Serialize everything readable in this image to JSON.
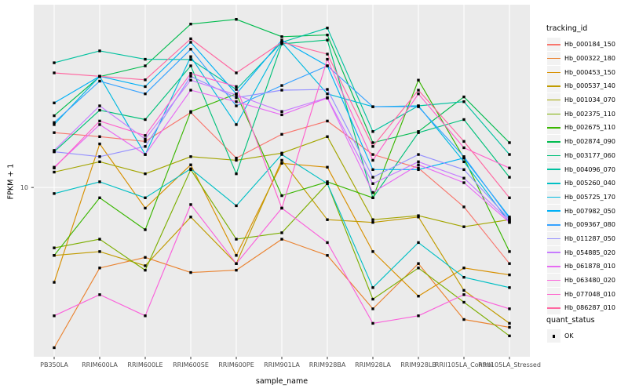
{
  "chart_data": {
    "type": "line",
    "title": "",
    "xlabel": "sample_name",
    "ylabel": "FPKM + 1",
    "y_scale": "log10",
    "y_tick_labels": [
      "10"
    ],
    "y_tick_values": [
      10
    ],
    "y_domain_log10": [
      0.25,
      1.81
    ],
    "grid": "major",
    "panel_bg": "#EBEBEB",
    "grid_color": "#FFFFFF",
    "axis_text_color": "#4D4D4D",
    "marker": "square",
    "marker_color": "#000000",
    "legend_key_bg": "#F2F2F2",
    "categories": [
      "PB350LA",
      "RRIM600LA",
      "RRIM600LE",
      "RRIM600SE",
      "RRIM600PE",
      "RRIM901LA",
      "RRIM928BA",
      "RRIM928LA",
      "RRIM928LB",
      "RRII105LA_Control",
      "RRII105LA_Stressed"
    ],
    "series": [
      {
        "name": "Hb_000184_150",
        "color": "#F8766D",
        "values": [
          17.5,
          16.8,
          16.0,
          21.5,
          13.5,
          17.2,
          19.7,
          14.0,
          12.2,
          8.2,
          4.6
        ]
      },
      {
        "name": "Hb_000322_180",
        "color": "#EA8331",
        "values": [
          1.95,
          4.4,
          4.9,
          4.2,
          4.3,
          5.9,
          5.0,
          2.9,
          4.6,
          2.6,
          2.4
        ]
      },
      {
        "name": "Hb_000453_150",
        "color": "#D89000",
        "values": [
          3.8,
          15.6,
          8.1,
          12.6,
          5.0,
          12.8,
          12.3,
          5.2,
          3.3,
          4.4,
          4.1
        ]
      },
      {
        "name": "Hb_000537_140",
        "color": "#C09B00",
        "values": [
          5.0,
          5.2,
          4.5,
          7.4,
          4.6,
          13.2,
          7.2,
          7.0,
          7.4,
          3.5,
          2.5
        ]
      },
      {
        "name": "Hb_001034_070",
        "color": "#A3A500",
        "values": [
          11.7,
          13.0,
          11.5,
          13.7,
          13.2,
          14.2,
          16.8,
          7.2,
          7.5,
          6.7,
          7.2
        ]
      },
      {
        "name": "Hb_002375_110",
        "color": "#7CAE00",
        "values": [
          5.4,
          5.9,
          4.3,
          12.0,
          5.9,
          6.3,
          10.4,
          3.2,
          4.4,
          3.1,
          2.2
        ]
      },
      {
        "name": "Hb_002675_110",
        "color": "#39B600",
        "values": [
          5.0,
          9.0,
          6.5,
          21.7,
          26.0,
          9.2,
          10.6,
          9.0,
          29.9,
          13.5,
          5.2
        ]
      },
      {
        "name": "Hb_002874_090",
        "color": "#00BB4E",
        "values": [
          20.8,
          31.0,
          34.6,
          53.0,
          55.6,
          46.6,
          47.4,
          15.8,
          17.7,
          25.2,
          15.8
        ]
      },
      {
        "name": "Hb_003177_060",
        "color": "#00C079",
        "values": [
          14.4,
          22.0,
          20.0,
          34.6,
          11.5,
          43.3,
          45.0,
          9.0,
          17.5,
          20.0,
          11.1
        ]
      },
      {
        "name": "Hb_004096_070",
        "color": "#00C19F",
        "values": [
          35.7,
          40.3,
          37.0,
          36.9,
          27.2,
          44.0,
          50.9,
          17.7,
          23.0,
          24.0,
          14.0
        ]
      },
      {
        "name": "Hb_005260_040",
        "color": "#00BFC4",
        "values": [
          9.4,
          10.6,
          9.0,
          12.1,
          8.3,
          14.0,
          10.4,
          3.6,
          5.7,
          4.0,
          3.6
        ]
      },
      {
        "name": "Hb_005725_170",
        "color": "#00BAE0",
        "values": [
          19.0,
          31.1,
          14.0,
          38.0,
          19.0,
          44.0,
          26.0,
          22.8,
          23.0,
          13.0,
          7.0
        ]
      },
      {
        "name": "Hb_007982_050",
        "color": "#00B0F6",
        "values": [
          23.7,
          31.1,
          28.0,
          44.0,
          26.0,
          45.0,
          34.6,
          12.0,
          12.0,
          13.5,
          7.4
        ]
      },
      {
        "name": "Hb_009367_080",
        "color": "#35A2FF",
        "values": [
          19.4,
          29.6,
          26.0,
          41.0,
          23.0,
          28.3,
          34.6,
          22.8,
          22.8,
          13.7,
          7.3
        ]
      },
      {
        "name": "Hb_011287_050",
        "color": "#9590FF",
        "values": [
          14.4,
          13.7,
          15.2,
          31.1,
          25.0,
          27.0,
          27.2,
          11.1,
          14.0,
          12.0,
          7.2
        ]
      },
      {
        "name": "Hb_054885_020",
        "color": "#C77CFF",
        "values": [
          14.6,
          23.0,
          16.4,
          29.9,
          25.7,
          21.7,
          25.0,
          10.4,
          13.0,
          11.0,
          7.1
        ]
      },
      {
        "name": "Hb_061878_010",
        "color": "#E76BF3",
        "values": [
          12.3,
          19.0,
          14.0,
          27.0,
          24.0,
          21.0,
          24.9,
          9.5,
          12.6,
          10.5,
          7.0
        ]
      },
      {
        "name": "Hb_063480_020",
        "color": "#FA62DB",
        "values": [
          2.7,
          3.35,
          2.7,
          8.4,
          4.6,
          8.1,
          5.7,
          2.5,
          2.7,
          3.35,
          2.9
        ]
      },
      {
        "name": "Hb_077048_010",
        "color": "#FF61CC",
        "values": [
          12.2,
          19.7,
          17.0,
          32.0,
          28.0,
          8.1,
          37.0,
          13.2,
          26.0,
          15.0,
          12.2
        ]
      },
      {
        "name": "Hb_086287_010",
        "color": "#FF68A1",
        "values": [
          32.2,
          31.1,
          30.0,
          45.6,
          32.2,
          44.0,
          39.0,
          15.2,
          27.0,
          16.0,
          9.0
        ]
      }
    ],
    "legend": {
      "title": "tracking_id",
      "position": "right"
    },
    "quant_legend": {
      "title": "quant_status",
      "items": [
        "OK"
      ]
    }
  }
}
